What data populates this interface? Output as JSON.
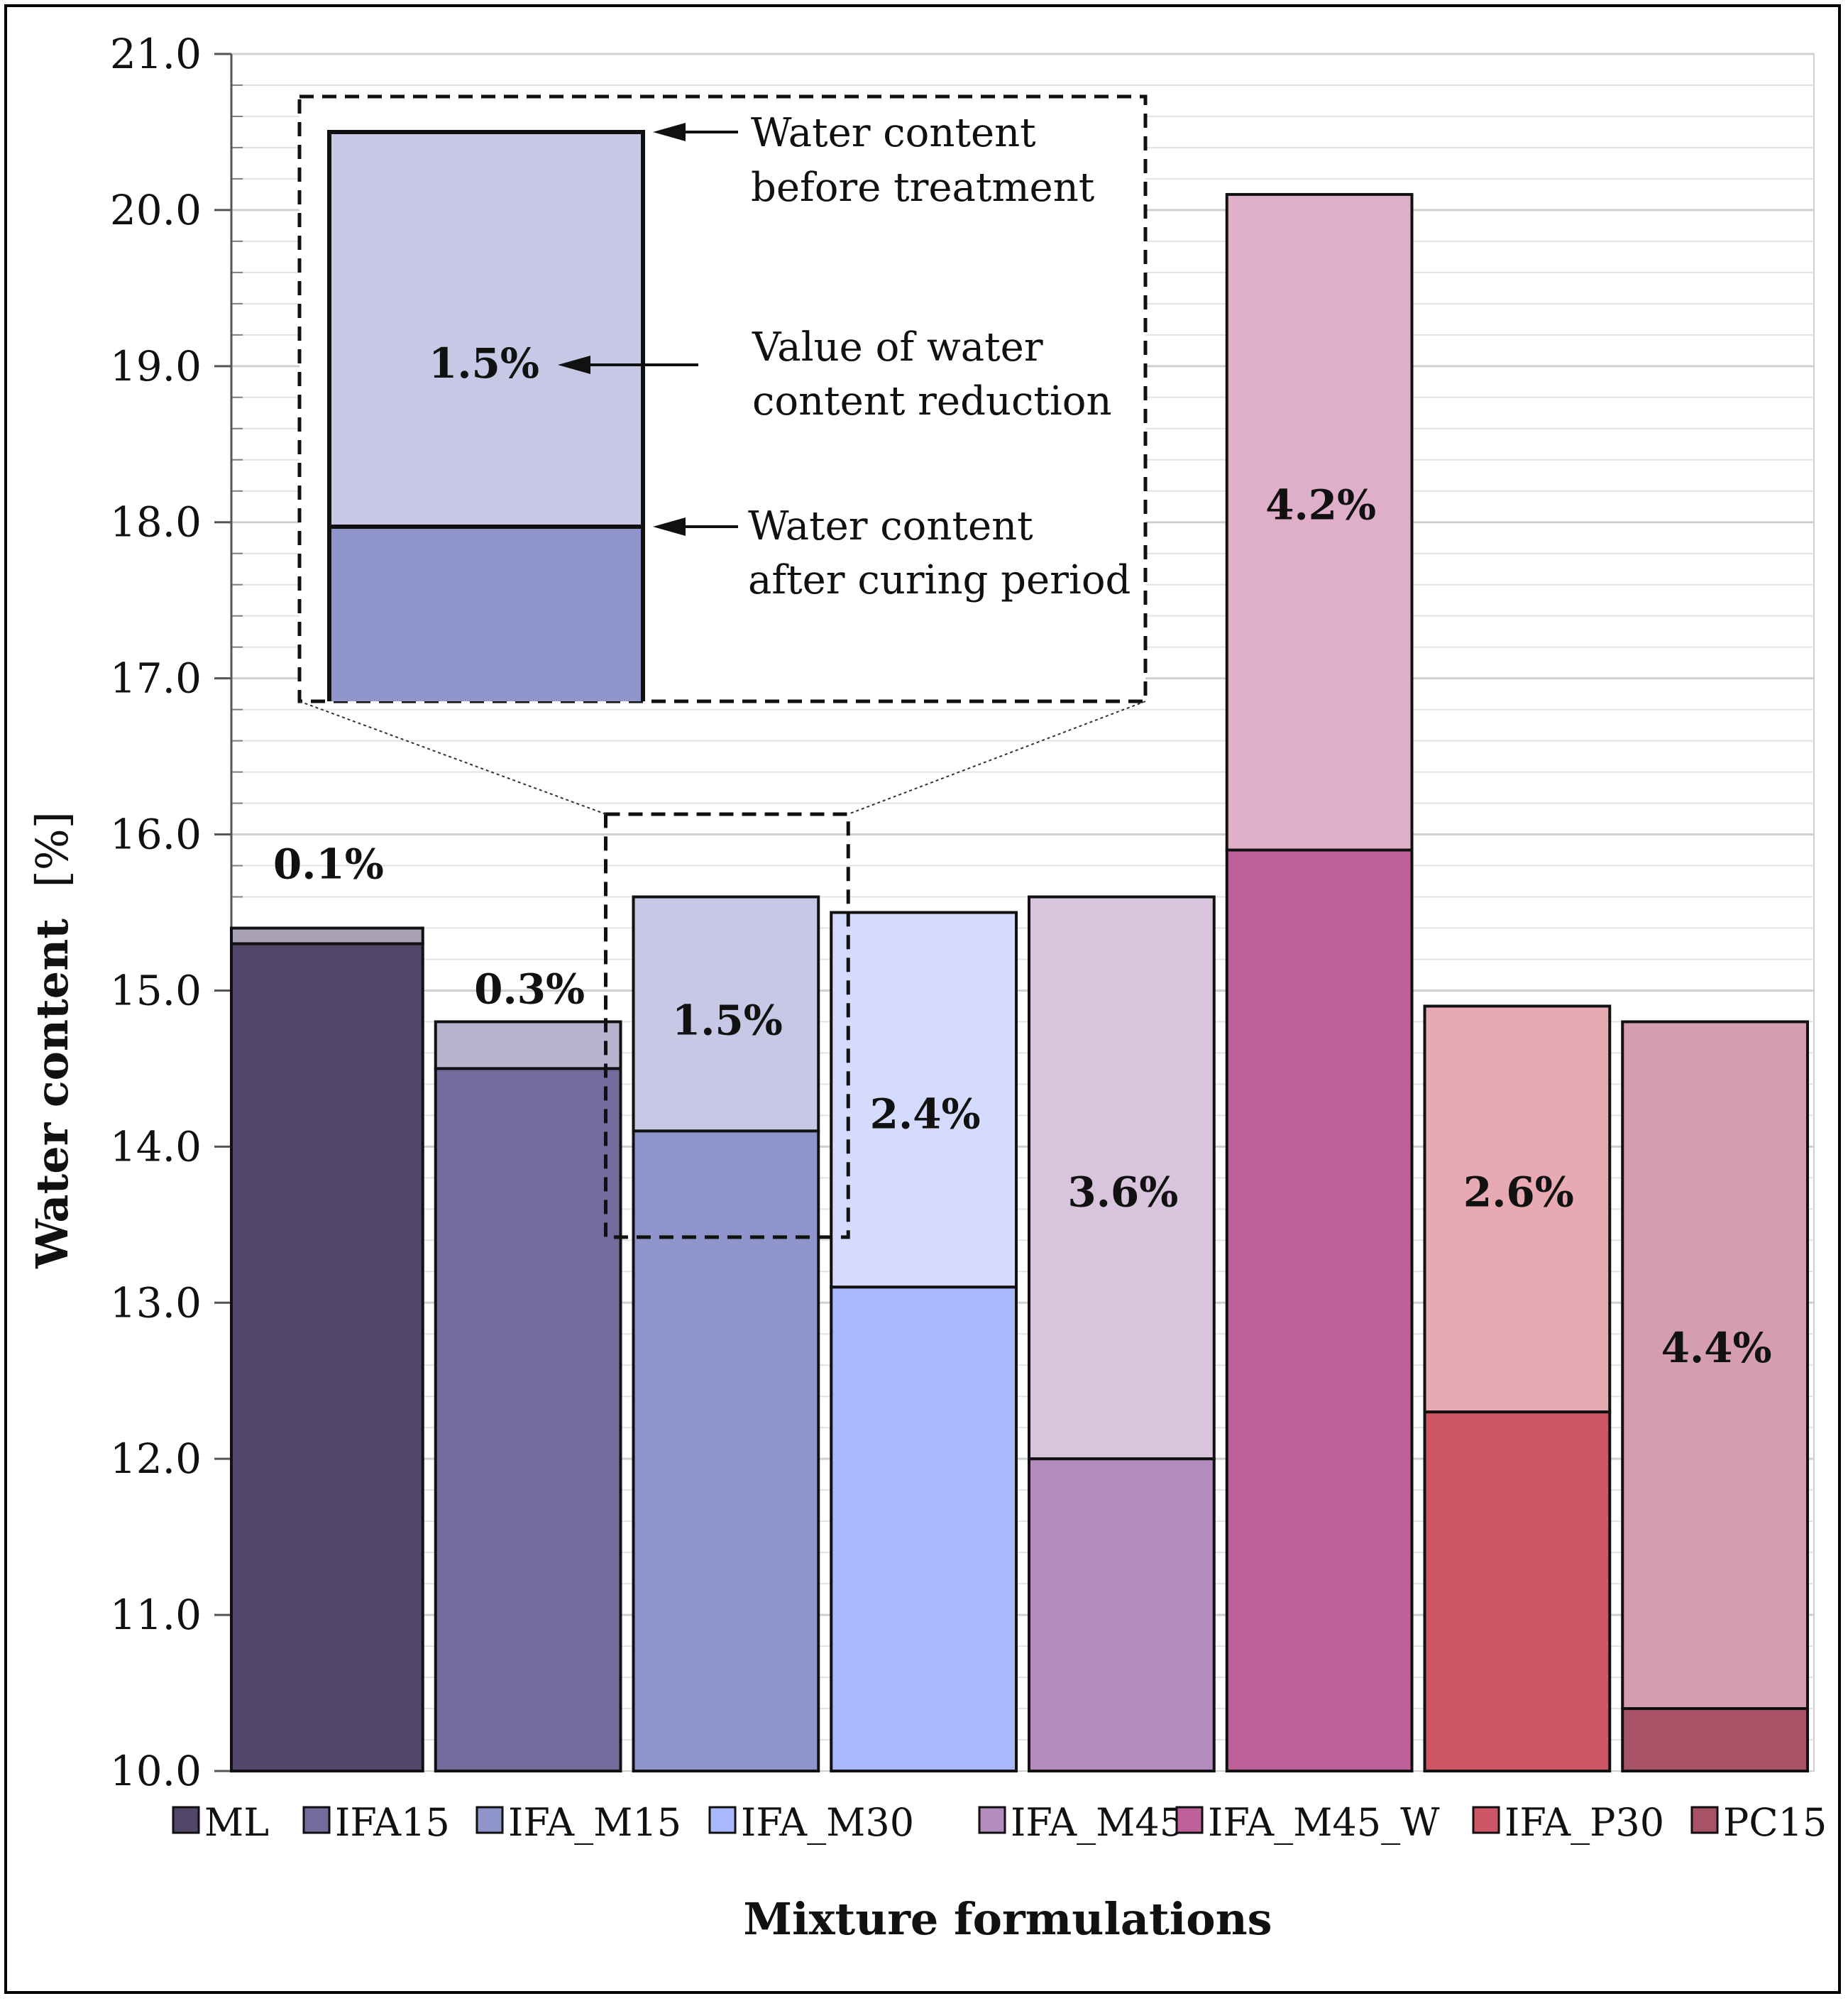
{
  "chart_data": {
    "type": "bar",
    "stacked": true,
    "title": "",
    "xlabel": "Mixture formulations",
    "ylabel_bold": "Water content",
    "ylabel_unit": "[%]",
    "ylim": [
      10.0,
      21.0
    ],
    "y_major_step": 1.0,
    "y_minor_step": 0.2,
    "y_tick_labels": [
      "10.0",
      "11.0",
      "12.0",
      "13.0",
      "14.0",
      "15.0",
      "16.0",
      "17.0",
      "18.0",
      "19.0",
      "20.0",
      "21.0"
    ],
    "grid": true,
    "legend_position": "bottom",
    "series": [
      {
        "name": "Water content after curing period",
        "role": "after"
      },
      {
        "name": "Water content before treatment",
        "role": "before"
      }
    ],
    "categories": [
      "ML",
      "IFA15",
      "IFA_M15",
      "IFA_M30",
      "IFA_M45",
      "IFA_M45_W",
      "IFA_P30",
      "PC15"
    ],
    "bars": [
      {
        "name": "ML",
        "before": 15.4,
        "after": 15.3,
        "reduction_label": "0.1%",
        "color_after": "#52466a",
        "color_before": "#a8a1b5"
      },
      {
        "name": "IFA15",
        "before": 14.8,
        "after": 14.5,
        "reduction_label": "0.3%",
        "color_after": "#746b9c",
        "color_before": "#b9b3ce"
      },
      {
        "name": "IFA_M15",
        "before": 15.6,
        "after": 14.1,
        "reduction_label": "1.5%",
        "color_after": "#8f95ca",
        "color_before": "#c6c8e5"
      },
      {
        "name": "IFA_M30",
        "before": 15.5,
        "after": 13.1,
        "reduction_label": "2.4%",
        "color_after": "#abb7fc",
        "color_before": "#d5dbfd"
      },
      {
        "name": "IFA_M45",
        "before": 15.6,
        "after": 12.0,
        "reduction_label": "3.6%",
        "color_after": "#b38bbc",
        "color_before": "#d9c4dd"
      },
      {
        "name": "IFA_M45_W",
        "before": 20.1,
        "after": 15.9,
        "reduction_label": "4.2%",
        "color_after": "#bf6198",
        "color_before": "#dfafca"
      },
      {
        "name": "IFA_P30",
        "before": 14.9,
        "after": 12.3,
        "reduction_label": "2.6%",
        "color_after": "#cf5666",
        "color_before": "#e7a9b2"
      },
      {
        "name": "PC15",
        "before": 14.8,
        "after": 10.4,
        "reduction_label": "4.4%",
        "color_after": "#a85268",
        "color_before": "#d49eaf"
      }
    ],
    "annotations": {
      "highlight_category": "IFA_M15",
      "inset_reduction_label": "1.5%",
      "before_line1": "Water content",
      "before_line2": "before treatment",
      "reduction_line1": "Value of water",
      "reduction_line2": "content reduction",
      "after_line1": "Water content",
      "after_line2": "after curing period"
    }
  }
}
